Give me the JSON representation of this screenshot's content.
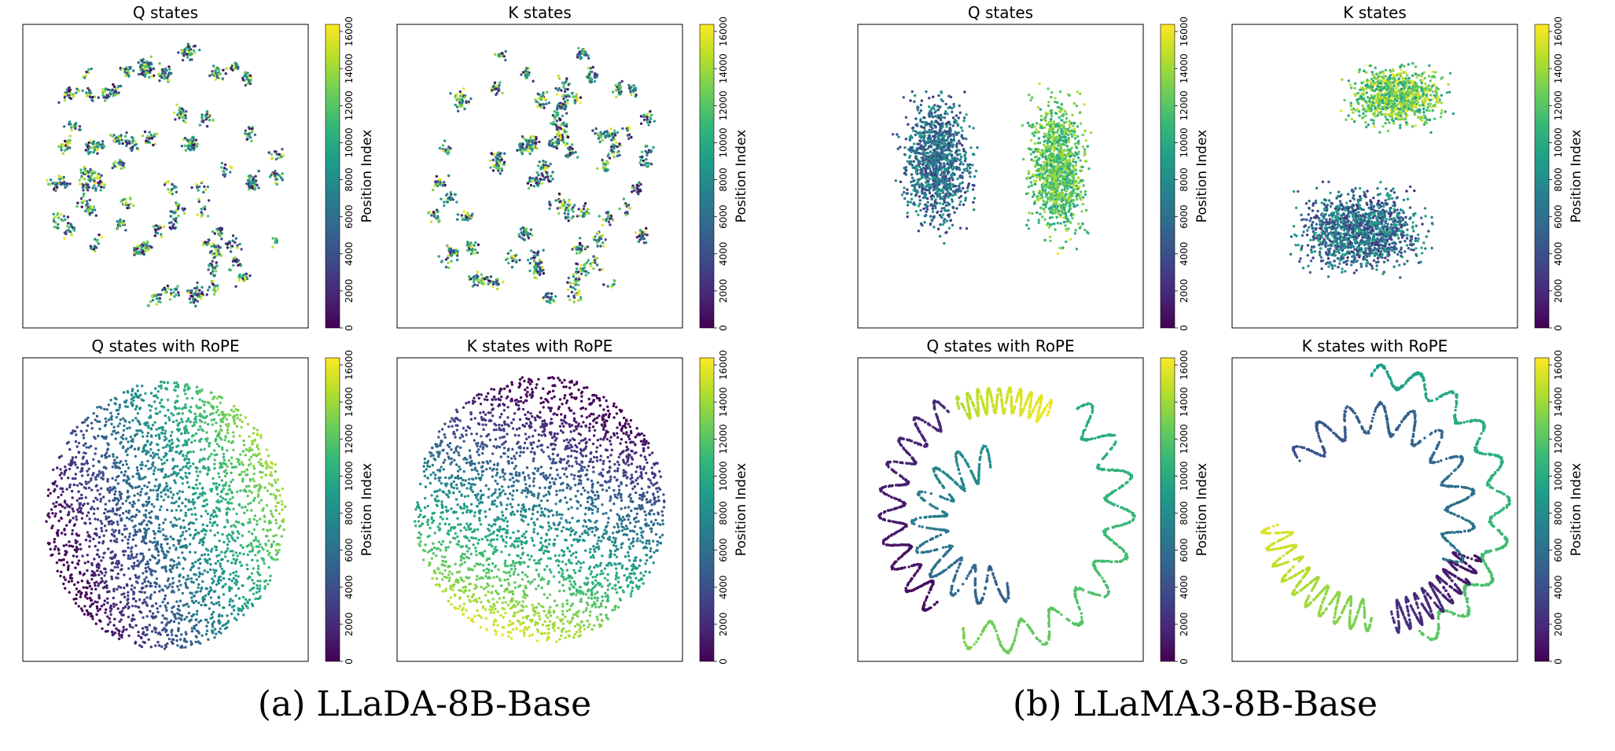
{
  "figure": {
    "colormap": "viridis",
    "colormap_stops": [
      "#440154",
      "#482878",
      "#3e4989",
      "#31688e",
      "#26828e",
      "#1f9e89",
      "#35b779",
      "#6ece58",
      "#b5de2b",
      "#fde725"
    ]
  },
  "captions": {
    "left": "(a) LLaDA-8B-Base",
    "right": "(b) LLaMA3-8B-Base"
  },
  "chart_data": [
    {
      "type": "scatter",
      "group": "LLaDA-8B-Base",
      "title": "Q states",
      "colorbar": {
        "label": "Position Index",
        "min": 0,
        "max": 16384,
        "ticks": [
          0,
          2000,
          4000,
          6000,
          8000,
          10000,
          12000,
          14000,
          16000
        ]
      },
      "pattern": "mixed",
      "n_points": 1400
    },
    {
      "type": "scatter",
      "group": "LLaDA-8B-Base",
      "title": "K states",
      "colorbar": {
        "label": "Position Index",
        "min": 0,
        "max": 16384,
        "ticks": [
          0,
          2000,
          4000,
          6000,
          8000,
          10000,
          12000,
          14000,
          16000
        ]
      },
      "pattern": "mixed",
      "n_points": 1400
    },
    {
      "type": "scatter",
      "group": "LLaMA3-8B-Base",
      "title": "Q states",
      "colorbar": {
        "label": "Position Index",
        "min": 0,
        "max": 16384,
        "ticks": [
          0,
          2000,
          4000,
          6000,
          8000,
          10000,
          12000,
          14000,
          16000
        ]
      },
      "pattern": "two-clusters",
      "n_points": 2200
    },
    {
      "type": "scatter",
      "group": "LLaMA3-8B-Base",
      "title": "K states",
      "colorbar": {
        "label": "Position Index",
        "min": 0,
        "max": 16384,
        "ticks": [
          0,
          2000,
          4000,
          6000,
          8000,
          10000,
          12000,
          14000,
          16000
        ]
      },
      "pattern": "two-clusters-top",
      "n_points": 2200
    },
    {
      "type": "scatter",
      "group": "LLaDA-8B-Base",
      "title": "Q states with RoPE",
      "colorbar": {
        "label": "Position Index",
        "min": 0,
        "max": 16384,
        "ticks": [
          0,
          2000,
          4000,
          6000,
          8000,
          10000,
          12000,
          14000,
          16000
        ]
      },
      "pattern": "angular-gradient",
      "n_points": 2600
    },
    {
      "type": "scatter",
      "group": "LLaDA-8B-Base",
      "title": "K states with RoPE",
      "colorbar": {
        "label": "Position Index",
        "min": 0,
        "max": 16384,
        "ticks": [
          0,
          2000,
          4000,
          6000,
          8000,
          10000,
          12000,
          14000,
          16000
        ]
      },
      "pattern": "vertical-gradient",
      "n_points": 2600
    },
    {
      "type": "scatter",
      "group": "LLaMA3-8B-Base",
      "title": "Q states with RoPE",
      "colorbar": {
        "label": "Position Index",
        "min": 0,
        "max": 16384,
        "ticks": [
          0,
          2000,
          4000,
          6000,
          8000,
          10000,
          12000,
          14000,
          16000
        ]
      },
      "pattern": "wavy-curves",
      "n_points": 2600
    },
    {
      "type": "scatter",
      "group": "LLaMA3-8B-Base",
      "title": "K states with RoPE",
      "colorbar": {
        "label": "Position Index",
        "min": 0,
        "max": 16384,
        "ticks": [
          0,
          2000,
          4000,
          6000,
          8000,
          10000,
          12000,
          14000,
          16000
        ]
      },
      "pattern": "wavy-curves-outer",
      "n_points": 2600
    }
  ]
}
